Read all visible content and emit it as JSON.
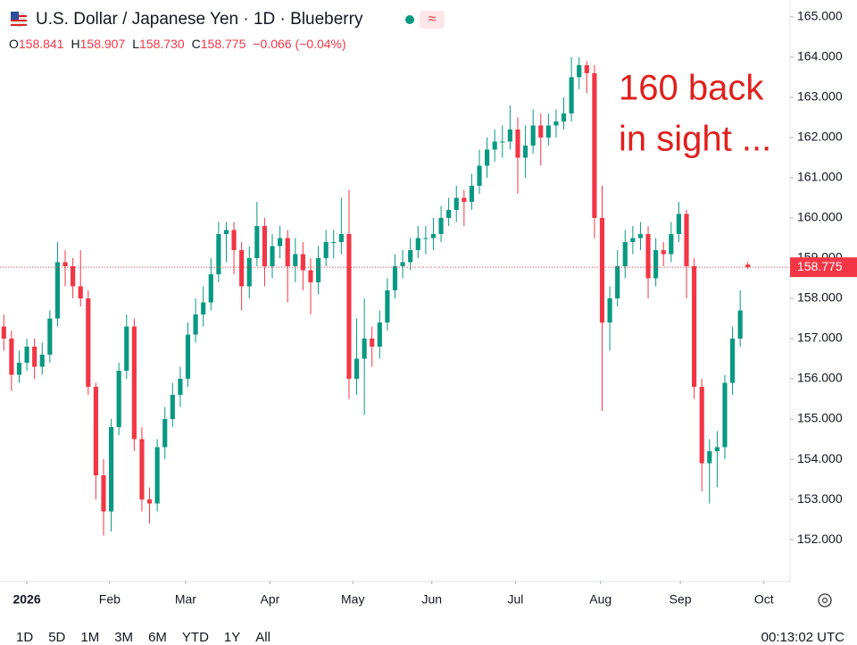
{
  "header": {
    "title": "U.S. Dollar / Japanese Yen · 1D · Blueberry",
    "status_icon": "≈",
    "ohlc": [
      {
        "key": "O",
        "value": "158.841"
      },
      {
        "key": "H",
        "value": "158.907"
      },
      {
        "key": "L",
        "value": "158.730"
      },
      {
        "key": "C",
        "value": "158.775"
      }
    ],
    "change": "−0.066 (−0.04%)"
  },
  "chart_data": {
    "type": "candlestick",
    "xlim": [
      -0.5,
      102.5
    ],
    "xticks": [
      {
        "value": 3,
        "label": "2026"
      },
      {
        "value": 13.8,
        "label": "Feb"
      },
      {
        "value": 23.7,
        "label": "Mar"
      },
      {
        "value": 34.7,
        "label": "Apr"
      },
      {
        "value": 45.5,
        "label": "May"
      },
      {
        "value": 55.8,
        "label": "Jun"
      },
      {
        "value": 66.7,
        "label": "Jul"
      },
      {
        "value": 77.8,
        "label": "Aug"
      },
      {
        "value": 88.2,
        "label": "Sep"
      },
      {
        "value": 99.1,
        "label": "Oct"
      }
    ],
    "ylim": [
      150.98,
      165.42
    ],
    "yticks": [
      {
        "value": 152,
        "label": "152.000"
      },
      {
        "value": 153,
        "label": "153.000"
      },
      {
        "value": 154,
        "label": "154.000"
      },
      {
        "value": 155,
        "label": "155.000"
      },
      {
        "value": 156,
        "label": "156.000"
      },
      {
        "value": 157,
        "label": "157.000"
      },
      {
        "value": 158,
        "label": "158.000"
      },
      {
        "value": 159,
        "label": "159.000"
      },
      {
        "value": 160,
        "label": "160.000"
      },
      {
        "value": 161,
        "label": "161.000"
      },
      {
        "value": 162,
        "label": "162.000"
      },
      {
        "value": 163,
        "label": "163.000"
      },
      {
        "value": 164,
        "label": "164.000"
      },
      {
        "value": 165,
        "label": "165.000"
      }
    ],
    "grid": false,
    "up_color": "#089981",
    "down_color": "#f23645",
    "open": [
      157.3,
      157.0,
      156.1,
      156.4,
      156.8,
      156.3,
      156.6,
      157.5,
      158.9,
      158.8,
      158.3,
      158.0,
      155.8,
      153.6,
      152.7,
      154.8,
      156.2,
      157.3,
      154.5,
      153.0,
      152.9,
      154.3,
      155.0,
      155.6,
      156.0,
      157.1,
      157.6,
      157.9,
      158.6,
      159.6,
      159.7,
      159.2,
      158.3,
      159.0,
      159.8,
      158.8,
      159.3,
      159.5,
      158.8,
      159.1,
      158.7,
      158.4,
      159.0,
      159.4,
      159.4,
      159.6,
      156.0,
      156.5,
      157.0,
      156.8,
      157.4,
      158.2,
      158.8,
      158.9,
      159.2,
      159.5,
      159.5,
      159.6,
      160.0,
      160.2,
      160.5,
      160.4,
      160.8,
      161.3,
      161.7,
      161.9,
      161.9,
      162.2,
      161.5,
      161.8,
      162.3,
      162.0,
      162.3,
      162.4,
      162.6,
      163.5,
      163.8,
      163.6,
      160.0,
      157.4,
      158.0,
      158.8,
      159.4,
      159.5,
      159.6,
      158.5,
      159.2,
      159.1,
      159.6,
      160.1,
      158.8,
      155.8,
      153.9,
      154.2,
      154.3,
      155.9,
      157.0,
      158.841
    ],
    "high": [
      157.6,
      157.2,
      156.7,
      157.0,
      157.0,
      156.9,
      157.7,
      159.4,
      159.2,
      159.0,
      159.2,
      158.2,
      155.9,
      154.0,
      155.0,
      156.4,
      157.6,
      157.5,
      154.8,
      153.3,
      154.5,
      155.3,
      155.9,
      156.3,
      157.4,
      158.0,
      158.3,
      159.0,
      159.9,
      159.9,
      159.9,
      159.4,
      159.3,
      160.4,
      160.0,
      159.6,
      159.8,
      159.7,
      159.5,
      159.4,
      159.0,
      159.3,
      159.7,
      159.7,
      160.5,
      160.7,
      157.5,
      158.0,
      157.3,
      157.7,
      158.5,
      159.1,
      159.2,
      159.5,
      159.8,
      159.8,
      160.0,
      160.3,
      160.5,
      160.8,
      160.7,
      161.1,
      161.7,
      162.0,
      162.2,
      162.3,
      162.8,
      162.5,
      162.3,
      162.7,
      162.6,
      162.6,
      162.7,
      163.0,
      164.0,
      164.0,
      163.9,
      163.8,
      160.8,
      158.3,
      159.2,
      159.7,
      159.8,
      159.9,
      159.8,
      159.5,
      159.4,
      159.9,
      160.4,
      160.2,
      159.0,
      156.0,
      154.5,
      154.7,
      156.1,
      157.3,
      158.2,
      158.907
    ],
    "low": [
      156.7,
      155.7,
      155.9,
      156.2,
      156.0,
      156.1,
      156.4,
      157.3,
      158.3,
      158.0,
      157.8,
      155.6,
      153.0,
      152.1,
      152.2,
      154.6,
      156.0,
      154.2,
      152.7,
      152.4,
      152.7,
      154.0,
      154.8,
      155.3,
      155.8,
      156.9,
      157.3,
      157.7,
      158.4,
      158.9,
      158.6,
      157.7,
      158.0,
      158.8,
      158.3,
      158.5,
      159.0,
      157.9,
      158.4,
      158.2,
      157.6,
      158.1,
      158.8,
      159.0,
      159.1,
      155.5,
      155.6,
      155.1,
      156.3,
      156.5,
      157.2,
      158.0,
      158.5,
      158.7,
      159.0,
      159.1,
      159.2,
      159.4,
      159.8,
      159.9,
      159.8,
      160.2,
      160.6,
      161.0,
      161.4,
      161.5,
      161.7,
      160.6,
      161.0,
      161.6,
      161.3,
      161.8,
      162.0,
      162.2,
      162.4,
      163.2,
      163.1,
      159.5,
      155.2,
      156.7,
      157.8,
      158.5,
      159.1,
      159.2,
      158.0,
      158.3,
      158.8,
      158.9,
      159.4,
      158.0,
      155.5,
      153.2,
      152.9,
      153.3,
      154.0,
      155.6,
      156.8,
      158.73
    ],
    "close": [
      157.0,
      156.1,
      156.4,
      156.8,
      156.3,
      156.6,
      157.5,
      158.9,
      158.8,
      158.3,
      158.0,
      155.8,
      153.6,
      152.7,
      154.8,
      156.2,
      157.3,
      154.5,
      153.0,
      152.9,
      154.3,
      155.0,
      155.6,
      156.0,
      157.1,
      157.6,
      157.9,
      158.6,
      159.6,
      159.7,
      159.2,
      158.3,
      159.0,
      159.8,
      158.8,
      159.3,
      159.5,
      158.8,
      159.1,
      158.7,
      158.4,
      159.0,
      159.4,
      159.4,
      159.6,
      156.0,
      156.5,
      157.0,
      156.8,
      157.4,
      158.2,
      158.8,
      158.9,
      159.2,
      159.5,
      159.5,
      159.6,
      160.0,
      160.2,
      160.5,
      160.4,
      160.8,
      161.3,
      161.7,
      161.9,
      161.9,
      162.2,
      161.5,
      161.8,
      162.3,
      162.0,
      162.3,
      162.4,
      162.6,
      163.5,
      163.8,
      163.6,
      160.0,
      157.4,
      158.0,
      158.8,
      159.4,
      159.5,
      159.6,
      158.5,
      159.2,
      159.1,
      159.6,
      160.1,
      158.8,
      155.8,
      153.9,
      154.2,
      154.3,
      155.9,
      157.0,
      157.7,
      158.775
    ],
    "last_price_label": "158.775",
    "annotation": [
      "160 back",
      "in sight ..."
    ]
  },
  "footer": {
    "ranges": [
      "1D",
      "5D",
      "1M",
      "3M",
      "6M",
      "YTD",
      "1Y",
      "All"
    ],
    "clock": "00:13:02 UTC"
  }
}
